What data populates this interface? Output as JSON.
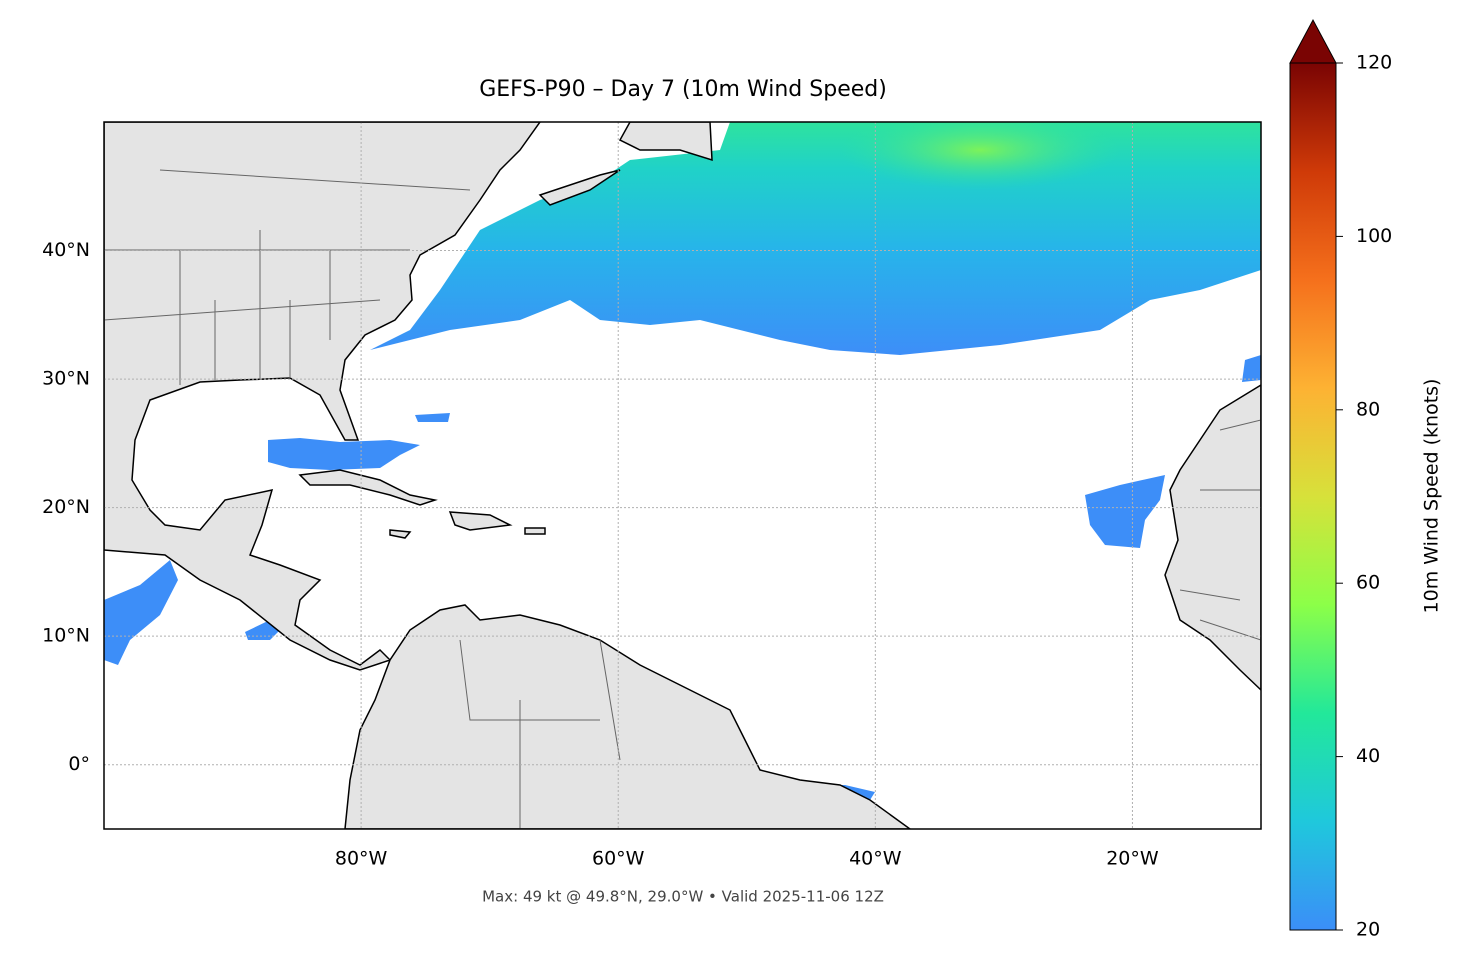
{
  "chart_data": {
    "type": "map",
    "title": "GEFS-P90 – Day 7 (10m Wind Speed)",
    "annotation": "Max: 49 kt @ 49.8°N, 29.0°W • Valid 2025-11-06 12Z",
    "xlim": [
      -100,
      -10
    ],
    "ylim": [
      -5,
      50
    ],
    "xticks": [
      {
        "value": -80,
        "label": "80°W"
      },
      {
        "value": -60,
        "label": "60°W"
      },
      {
        "value": -40,
        "label": "40°W"
      },
      {
        "value": -20,
        "label": "20°W"
      }
    ],
    "yticks": [
      {
        "value": 0,
        "label": "0°"
      },
      {
        "value": 10,
        "label": "10°N"
      },
      {
        "value": 20,
        "label": "20°N"
      },
      {
        "value": 30,
        "label": "30°N"
      },
      {
        "value": 40,
        "label": "40°N"
      }
    ],
    "grid": true,
    "colorbar": {
      "label": "10m Wind Speed (knots)",
      "lim": [
        20,
        120
      ],
      "ticks": [
        20,
        40,
        60,
        80,
        100,
        120
      ],
      "colors": [
        "#3b8ef8",
        "#1fc8dc",
        "#22e89a",
        "#8cff48",
        "#d7e13a",
        "#fdb233",
        "#f5701c",
        "#cf3a08",
        "#7a0403"
      ]
    }
  }
}
